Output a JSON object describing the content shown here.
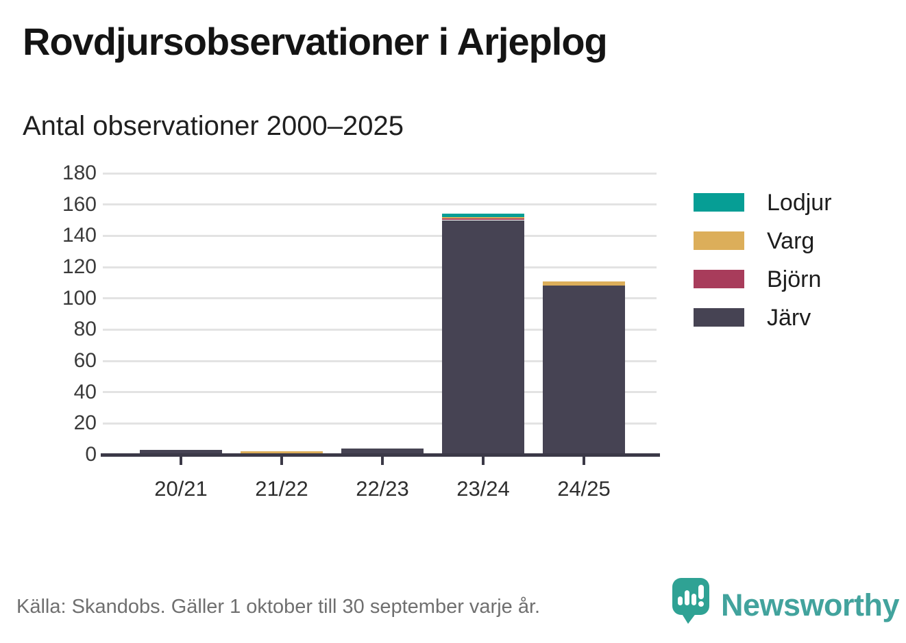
{
  "header": {
    "title": "Rovdjursobservationer i Arjeplog"
  },
  "chart_data": {
    "type": "bar",
    "stacked": true,
    "title": "Antal observationer 2000–2025",
    "categories": [
      "20/21",
      "21/22",
      "22/23",
      "23/24",
      "24/25"
    ],
    "series": [
      {
        "name": "Lodjur",
        "color": "#069e95",
        "values": [
          0,
          0,
          0,
          2,
          0
        ]
      },
      {
        "name": "Varg",
        "color": "#dcae5a",
        "values": [
          0,
          1,
          0,
          1,
          3
        ]
      },
      {
        "name": "Björn",
        "color": "#a83c5b",
        "values": [
          0,
          0,
          0,
          1,
          0
        ]
      },
      {
        "name": "Järv",
        "color": "#464353",
        "values": [
          3,
          1,
          4,
          150,
          108
        ]
      }
    ],
    "stack_order_bottom_to_top": [
      "Järv",
      "Björn",
      "Varg",
      "Lodjur"
    ],
    "ylim": [
      0,
      180
    ],
    "yticks": [
      0,
      20,
      40,
      60,
      80,
      100,
      120,
      140,
      160,
      180
    ],
    "grid": "horizontal",
    "legend_position": "right"
  },
  "footer": {
    "source": "Källa: Skandobs. Gäller 1 oktober till 30 september varje år.",
    "brand": "Newsworthy"
  },
  "colors": {
    "axis": "#3b3947",
    "gridline": "#e3e3e3",
    "brand_teal": "#2fa294",
    "text_muted": "#6f6f6f"
  }
}
